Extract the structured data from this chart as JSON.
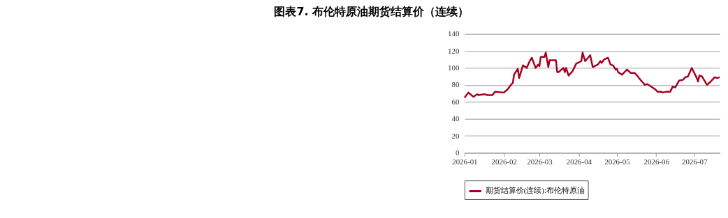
{
  "chart_data": {
    "type": "line",
    "title": "图表7.     布伦特原油期货结算价（连续）",
    "x": [
      "2026-01-01",
      "2026-01-04",
      "2026-01-08",
      "2026-01-11",
      "2026-01-12",
      "2026-01-17",
      "2026-01-19",
      "2026-01-22",
      "2026-01-23",
      "2026-01-25",
      "2026-02-01",
      "2026-02-04",
      "2026-02-07",
      "2026-02-08",
      "2026-02-09",
      "2026-02-12",
      "2026-02-13",
      "2026-02-16",
      "2026-02-19",
      "2026-02-21",
      "2026-02-23",
      "2026-02-26",
      "2026-02-28",
      "2026-03-01",
      "2026-03-02",
      "2026-03-05",
      "2026-03-06",
      "2026-03-08",
      "2026-03-09",
      "2026-03-14",
      "2026-03-15",
      "2026-03-16",
      "2026-03-20",
      "2026-03-21",
      "2026-03-22",
      "2026-03-24",
      "2026-03-27",
      "2026-03-30",
      "2026-04-03",
      "2026-04-04",
      "2026-04-06",
      "2026-04-10",
      "2026-04-12",
      "2026-04-16",
      "2026-04-18",
      "2026-04-19",
      "2026-04-21",
      "2026-04-24",
      "2026-04-26",
      "2026-04-28",
      "2026-04-30",
      "2026-05-01",
      "2026-05-02",
      "2026-05-05",
      "2026-05-09",
      "2026-05-12",
      "2026-05-15",
      "2026-05-17",
      "2026-05-19",
      "2026-05-22",
      "2026-05-23",
      "2026-05-25",
      "2026-05-30",
      "2026-05-31",
      "2026-06-02",
      "2026-06-05",
      "2026-06-06",
      "2026-06-09",
      "2026-06-12",
      "2026-06-14",
      "2026-06-16",
      "2026-06-19",
      "2026-06-22",
      "2026-06-24",
      "2026-06-26",
      "2026-06-29",
      "2026-07-03",
      "2026-07-04",
      "2026-07-05",
      "2026-07-07",
      "2026-07-11",
      "2026-07-14",
      "2026-07-17",
      "2026-07-19",
      "2026-07-21"
    ],
    "series": [
      {
        "name": "期货结算价(连续):布伦特原油",
        "color": "#a50021",
        "values": [
          65,
          71,
          66,
          69,
          68,
          69,
          68,
          68,
          68,
          72,
          71,
          75,
          81,
          82,
          92,
          99,
          88,
          103,
          100,
          107,
          112,
          100,
          104,
          102,
          113,
          113,
          118,
          101,
          109,
          109,
          95,
          95,
          100,
          95,
          100,
          91,
          96,
          105,
          108,
          118,
          108,
          115,
          101,
          104,
          108,
          106,
          110,
          112,
          104,
          103,
          98,
          99,
          95,
          92,
          98,
          94,
          94,
          91,
          87,
          82,
          80,
          81,
          76,
          75,
          72,
          72,
          71,
          72,
          72,
          78,
          77,
          85,
          86,
          89,
          90,
          100,
          88,
          84,
          91,
          90,
          80,
          84,
          89,
          88,
          89
        ]
      }
    ],
    "xlim": [
      "2026-01-01",
      "2026-07-21"
    ],
    "xticks": [
      {
        "value": "2026-01-01",
        "label": "2026-01"
      },
      {
        "value": "2026-02-01",
        "label": "2026-02"
      },
      {
        "value": "2026-03-01",
        "label": "2026-03"
      },
      {
        "value": "2026-04-01",
        "label": "2026-04"
      },
      {
        "value": "2026-05-01",
        "label": "2026-05"
      },
      {
        "value": "2026-06-01",
        "label": "2026-06"
      },
      {
        "value": "2026-07-01",
        "label": "2026-07"
      }
    ],
    "ylim": [
      0,
      140
    ],
    "yticks": [
      0,
      20,
      40,
      60,
      80,
      100,
      120,
      140
    ],
    "grid": "y",
    "legend": "bottom",
    "marker": "none",
    "line_style": "solid"
  }
}
